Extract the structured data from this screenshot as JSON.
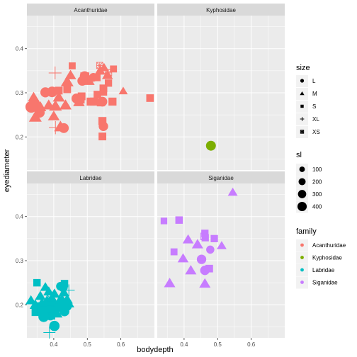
{
  "chart_data": {
    "type": "scatter",
    "facet_by": "family",
    "xlabel": "bodydepth",
    "ylabel": "eyediameter",
    "xlim": [
      0.32,
      0.7
    ],
    "ylim": [
      0.125,
      0.475
    ],
    "x_ticks": [
      0.4,
      0.5,
      0.6
    ],
    "x_tick_labels": [
      "0.4",
      "0.5",
      "0.6"
    ],
    "y_ticks": [
      0.2,
      0.3,
      0.4
    ],
    "y_tick_labels": [
      "0.2",
      "0.3",
      "0.4"
    ],
    "grid": true,
    "legend_position": "right",
    "colors": {
      "Acanthuridae": "#F8766D",
      "Kyphosidae": "#7CAE00",
      "Labridae": "#00BFC4",
      "Siganidae": "#C77CFF"
    },
    "legends": {
      "size": {
        "title": "size",
        "levels": [
          "L",
          "M",
          "S",
          "XL",
          "XS"
        ]
      },
      "sl": {
        "title": "sl",
        "values": [
          100,
          200,
          300,
          400
        ]
      },
      "family": {
        "title": "family",
        "levels": [
          "Acanthuridae",
          "Kyphosidae",
          "Labridae",
          "Siganidae"
        ]
      }
    },
    "panels": [
      {
        "name": "Acanthuridae",
        "points": [
          {
            "x": 0.333,
            "y": 0.268,
            "size": "L",
            "sl": 380
          },
          {
            "x": 0.342,
            "y": 0.276,
            "size": "L",
            "sl": 320
          },
          {
            "x": 0.358,
            "y": 0.255,
            "size": "L",
            "sl": 260
          },
          {
            "x": 0.375,
            "y": 0.301,
            "size": "L",
            "sl": 260
          },
          {
            "x": 0.395,
            "y": 0.302,
            "size": "L",
            "sl": 300
          },
          {
            "x": 0.43,
            "y": 0.22,
            "size": "L",
            "sl": 250
          },
          {
            "x": 0.468,
            "y": 0.287,
            "size": "L",
            "sl": 260
          },
          {
            "x": 0.485,
            "y": 0.327,
            "size": "L",
            "sl": 240
          },
          {
            "x": 0.492,
            "y": 0.338,
            "size": "L",
            "sl": 230
          },
          {
            "x": 0.518,
            "y": 0.335,
            "size": "L",
            "sl": 180
          },
          {
            "x": 0.545,
            "y": 0.28,
            "size": "L",
            "sl": 240
          },
          {
            "x": 0.548,
            "y": 0.224,
            "size": "L",
            "sl": 220
          },
          {
            "x": 0.34,
            "y": 0.29,
            "size": "M",
            "sl": 220
          },
          {
            "x": 0.345,
            "y": 0.245,
            "size": "M",
            "sl": 300
          },
          {
            "x": 0.36,
            "y": 0.268,
            "size": "M",
            "sl": 250
          },
          {
            "x": 0.385,
            "y": 0.272,
            "size": "M",
            "sl": 250
          },
          {
            "x": 0.4,
            "y": 0.247,
            "size": "M",
            "sl": 240
          },
          {
            "x": 0.405,
            "y": 0.27,
            "size": "M",
            "sl": 300
          },
          {
            "x": 0.415,
            "y": 0.29,
            "size": "M",
            "sl": 260
          },
          {
            "x": 0.42,
            "y": 0.223,
            "size": "M",
            "sl": 300
          },
          {
            "x": 0.435,
            "y": 0.272,
            "size": "M",
            "sl": 260
          },
          {
            "x": 0.44,
            "y": 0.325,
            "size": "M",
            "sl": 300
          },
          {
            "x": 0.45,
            "y": 0.34,
            "size": "M",
            "sl": 220
          },
          {
            "x": 0.475,
            "y": 0.279,
            "size": "M",
            "sl": 230
          },
          {
            "x": 0.505,
            "y": 0.327,
            "size": "M",
            "sl": 220
          },
          {
            "x": 0.538,
            "y": 0.35,
            "size": "M",
            "sl": 200
          },
          {
            "x": 0.55,
            "y": 0.357,
            "size": "M",
            "sl": 150
          },
          {
            "x": 0.56,
            "y": 0.34,
            "size": "M",
            "sl": 200
          },
          {
            "x": 0.607,
            "y": 0.304,
            "size": "M",
            "sl": 120
          },
          {
            "x": 0.415,
            "y": 0.305,
            "size": "S",
            "sl": 200
          },
          {
            "x": 0.44,
            "y": 0.308,
            "size": "S",
            "sl": 200
          },
          {
            "x": 0.455,
            "y": 0.361,
            "size": "S",
            "sl": 150
          },
          {
            "x": 0.48,
            "y": 0.285,
            "size": "S",
            "sl": 220
          },
          {
            "x": 0.483,
            "y": 0.292,
            "size": "S",
            "sl": 200
          },
          {
            "x": 0.49,
            "y": 0.338,
            "size": "S",
            "sl": 170
          },
          {
            "x": 0.495,
            "y": 0.338,
            "size": "S",
            "sl": 170
          },
          {
            "x": 0.51,
            "y": 0.28,
            "size": "S",
            "sl": 220
          },
          {
            "x": 0.52,
            "y": 0.28,
            "size": "S",
            "sl": 220
          },
          {
            "x": 0.528,
            "y": 0.335,
            "size": "S",
            "sl": 200
          },
          {
            "x": 0.53,
            "y": 0.296,
            "size": "S",
            "sl": 190
          },
          {
            "x": 0.54,
            "y": 0.278,
            "size": "S",
            "sl": 200
          },
          {
            "x": 0.545,
            "y": 0.236,
            "size": "S",
            "sl": 220
          },
          {
            "x": 0.545,
            "y": 0.201,
            "size": "S",
            "sl": 200
          },
          {
            "x": 0.548,
            "y": 0.31,
            "size": "S",
            "sl": 200
          },
          {
            "x": 0.548,
            "y": 0.302,
            "size": "S",
            "sl": 180
          },
          {
            "x": 0.563,
            "y": 0.322,
            "size": "S",
            "sl": 170
          },
          {
            "x": 0.575,
            "y": 0.28,
            "size": "S",
            "sl": 220
          },
          {
            "x": 0.578,
            "y": 0.354,
            "size": "S",
            "sl": 150
          },
          {
            "x": 0.687,
            "y": 0.288,
            "size": "S",
            "sl": 190
          },
          {
            "x": 0.404,
            "y": 0.345,
            "size": "XL",
            "sl": 380
          },
          {
            "x": 0.405,
            "y": 0.221,
            "size": "XL",
            "sl": 400
          },
          {
            "x": 0.537,
            "y": 0.362,
            "size": "XS",
            "sl": 110
          },
          {
            "x": 0.563,
            "y": 0.345,
            "size": "XS",
            "sl": 130
          }
        ]
      },
      {
        "name": "Kyphosidae",
        "points": [
          {
            "x": 0.48,
            "y": 0.18,
            "size": "L",
            "sl": 250
          }
        ]
      },
      {
        "name": "Labridae",
        "points": [
          {
            "x": 0.37,
            "y": 0.173,
            "size": "L",
            "sl": 300
          },
          {
            "x": 0.378,
            "y": 0.182,
            "size": "L",
            "sl": 280
          },
          {
            "x": 0.382,
            "y": 0.2,
            "size": "L",
            "sl": 250
          },
          {
            "x": 0.385,
            "y": 0.188,
            "size": "L",
            "sl": 320
          },
          {
            "x": 0.39,
            "y": 0.176,
            "size": "L",
            "sl": 260
          },
          {
            "x": 0.393,
            "y": 0.208,
            "size": "L",
            "sl": 240
          },
          {
            "x": 0.398,
            "y": 0.185,
            "size": "L",
            "sl": 200
          },
          {
            "x": 0.402,
            "y": 0.152,
            "size": "L",
            "sl": 280
          },
          {
            "x": 0.408,
            "y": 0.192,
            "size": "L",
            "sl": 220
          },
          {
            "x": 0.412,
            "y": 0.197,
            "size": "L",
            "sl": 250
          },
          {
            "x": 0.42,
            "y": 0.242,
            "size": "L",
            "sl": 180
          },
          {
            "x": 0.428,
            "y": 0.239,
            "size": "L",
            "sl": 200
          },
          {
            "x": 0.432,
            "y": 0.185,
            "size": "L",
            "sl": 240
          },
          {
            "x": 0.44,
            "y": 0.197,
            "size": "L",
            "sl": 220
          },
          {
            "x": 0.332,
            "y": 0.21,
            "size": "M",
            "sl": 200
          },
          {
            "x": 0.345,
            "y": 0.2,
            "size": "M",
            "sl": 220
          },
          {
            "x": 0.352,
            "y": 0.187,
            "size": "M",
            "sl": 200
          },
          {
            "x": 0.36,
            "y": 0.22,
            "size": "M",
            "sl": 200
          },
          {
            "x": 0.365,
            "y": 0.204,
            "size": "M",
            "sl": 220
          },
          {
            "x": 0.368,
            "y": 0.187,
            "size": "M",
            "sl": 220
          },
          {
            "x": 0.375,
            "y": 0.24,
            "size": "M",
            "sl": 180
          },
          {
            "x": 0.38,
            "y": 0.21,
            "size": "M",
            "sl": 200
          },
          {
            "x": 0.385,
            "y": 0.23,
            "size": "M",
            "sl": 200
          },
          {
            "x": 0.392,
            "y": 0.194,
            "size": "M",
            "sl": 200
          },
          {
            "x": 0.398,
            "y": 0.21,
            "size": "M",
            "sl": 220
          },
          {
            "x": 0.402,
            "y": 0.225,
            "size": "M",
            "sl": 200
          },
          {
            "x": 0.41,
            "y": 0.18,
            "size": "M",
            "sl": 200
          },
          {
            "x": 0.418,
            "y": 0.21,
            "size": "M",
            "sl": 220
          },
          {
            "x": 0.425,
            "y": 0.212,
            "size": "M",
            "sl": 200
          },
          {
            "x": 0.43,
            "y": 0.228,
            "size": "M",
            "sl": 200
          },
          {
            "x": 0.44,
            "y": 0.212,
            "size": "M",
            "sl": 220
          },
          {
            "x": 0.445,
            "y": 0.203,
            "size": "M",
            "sl": 200
          },
          {
            "x": 0.345,
            "y": 0.183,
            "size": "S",
            "sl": 180
          },
          {
            "x": 0.35,
            "y": 0.25,
            "size": "S",
            "sl": 180
          },
          {
            "x": 0.355,
            "y": 0.19,
            "size": "S",
            "sl": 200
          },
          {
            "x": 0.362,
            "y": 0.197,
            "size": "S",
            "sl": 200
          },
          {
            "x": 0.37,
            "y": 0.188,
            "size": "S",
            "sl": 180
          },
          {
            "x": 0.375,
            "y": 0.176,
            "size": "S",
            "sl": 180
          },
          {
            "x": 0.383,
            "y": 0.205,
            "size": "S",
            "sl": 200
          },
          {
            "x": 0.39,
            "y": 0.19,
            "size": "S",
            "sl": 180
          },
          {
            "x": 0.402,
            "y": 0.188,
            "size": "S",
            "sl": 180
          },
          {
            "x": 0.413,
            "y": 0.195,
            "size": "S",
            "sl": 180
          },
          {
            "x": 0.425,
            "y": 0.2,
            "size": "S",
            "sl": 180
          },
          {
            "x": 0.432,
            "y": 0.248,
            "size": "S",
            "sl": 180
          },
          {
            "x": 0.387,
            "y": 0.137,
            "size": "XL",
            "sl": 320
          },
          {
            "x": 0.445,
            "y": 0.233,
            "size": "XL",
            "sl": 300
          },
          {
            "x": 0.39,
            "y": 0.215,
            "size": "XS",
            "sl": 150
          },
          {
            "x": 0.393,
            "y": 0.175,
            "size": "XS",
            "sl": 150
          }
        ]
      },
      {
        "name": "Siganidae",
        "points": [
          {
            "x": 0.452,
            "y": 0.303,
            "size": "L",
            "sl": 220
          },
          {
            "x": 0.462,
            "y": 0.278,
            "size": "L",
            "sl": 220
          },
          {
            "x": 0.478,
            "y": 0.325,
            "size": "L",
            "sl": 150
          },
          {
            "x": 0.357,
            "y": 0.249,
            "size": "M",
            "sl": 220
          },
          {
            "x": 0.397,
            "y": 0.305,
            "size": "M",
            "sl": 200
          },
          {
            "x": 0.412,
            "y": 0.348,
            "size": "M",
            "sl": 200
          },
          {
            "x": 0.42,
            "y": 0.278,
            "size": "M",
            "sl": 220
          },
          {
            "x": 0.44,
            "y": 0.337,
            "size": "M",
            "sl": 220
          },
          {
            "x": 0.462,
            "y": 0.248,
            "size": "M",
            "sl": 220
          },
          {
            "x": 0.512,
            "y": 0.334,
            "size": "M",
            "sl": 150
          },
          {
            "x": 0.545,
            "y": 0.455,
            "size": "M",
            "sl": 150
          },
          {
            "x": 0.34,
            "y": 0.39,
            "size": "S",
            "sl": 130
          },
          {
            "x": 0.37,
            "y": 0.32,
            "size": "S",
            "sl": 150
          },
          {
            "x": 0.385,
            "y": 0.392,
            "size": "S",
            "sl": 180
          },
          {
            "x": 0.462,
            "y": 0.362,
            "size": "S",
            "sl": 170
          },
          {
            "x": 0.463,
            "y": 0.352,
            "size": "S",
            "sl": 170
          },
          {
            "x": 0.475,
            "y": 0.282,
            "size": "S",
            "sl": 190
          },
          {
            "x": 0.49,
            "y": 0.35,
            "size": "S",
            "sl": 170
          },
          {
            "x": 0.46,
            "y": 0.355,
            "size": "XS",
            "sl": 140
          }
        ]
      }
    ]
  }
}
